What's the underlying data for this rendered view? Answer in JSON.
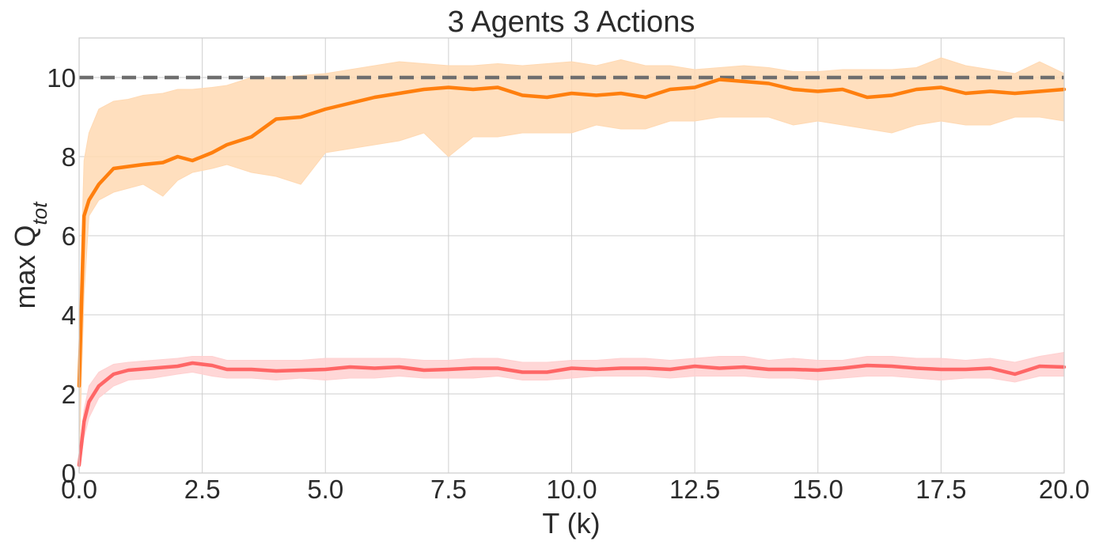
{
  "chart_data": {
    "type": "line",
    "title": "3 Agents 3 Actions",
    "xlabel": "T (k)",
    "ylabel_main": "max Q",
    "ylabel_sub": "tot",
    "xlim": [
      0,
      20
    ],
    "ylim": [
      0,
      11
    ],
    "xticks": [
      "0.0",
      "2.5",
      "5.0",
      "7.5",
      "10.0",
      "12.5",
      "15.0",
      "17.5",
      "20.0"
    ],
    "yticks": [
      "0",
      "2",
      "4",
      "6",
      "8",
      "10"
    ],
    "grid": true,
    "reference_line": {
      "y": 10,
      "color": "#6e6e6e",
      "style": "dashed"
    },
    "series": [
      {
        "color": "#ff7f0e",
        "band_color": "#ffd9b3",
        "x": [
          0,
          0.1,
          0.2,
          0.4,
          0.7,
          1.0,
          1.3,
          1.7,
          2.0,
          2.3,
          2.7,
          3.0,
          3.5,
          4.0,
          4.5,
          5.0,
          5.5,
          6.0,
          6.5,
          7.0,
          7.5,
          8.0,
          8.5,
          9.0,
          9.5,
          10.0,
          10.5,
          11.0,
          11.5,
          12.0,
          12.5,
          13.0,
          13.5,
          14.0,
          14.5,
          15.0,
          15.5,
          16.0,
          16.5,
          17.0,
          17.5,
          18.0,
          18.5,
          19.0,
          19.5,
          20.0
        ],
        "y": [
          2.2,
          6.5,
          6.9,
          7.3,
          7.7,
          7.75,
          7.8,
          7.85,
          8.0,
          7.9,
          8.1,
          8.3,
          8.5,
          8.95,
          9.0,
          9.2,
          9.35,
          9.5,
          9.6,
          9.7,
          9.75,
          9.7,
          9.75,
          9.55,
          9.5,
          9.6,
          9.55,
          9.6,
          9.5,
          9.7,
          9.75,
          9.95,
          9.9,
          9.85,
          9.7,
          9.65,
          9.7,
          9.5,
          9.55,
          9.7,
          9.75,
          9.6,
          9.65,
          9.6,
          9.65,
          9.7
        ],
        "lower": [
          0.3,
          4.5,
          6.5,
          6.9,
          7.1,
          7.2,
          7.3,
          7.0,
          7.4,
          7.6,
          7.7,
          7.8,
          7.6,
          7.5,
          7.3,
          8.1,
          8.2,
          8.3,
          8.4,
          8.6,
          8.0,
          8.5,
          8.5,
          8.6,
          8.6,
          8.6,
          8.8,
          8.7,
          8.7,
          8.9,
          8.9,
          9.0,
          9.0,
          9.0,
          8.8,
          8.9,
          8.8,
          8.7,
          8.6,
          8.8,
          8.9,
          8.8,
          8.8,
          9.0,
          9.0,
          8.9
        ],
        "upper": [
          3.5,
          7.9,
          8.6,
          9.2,
          9.4,
          9.45,
          9.55,
          9.6,
          9.7,
          9.7,
          9.75,
          9.8,
          10.0,
          10.0,
          10.05,
          10.1,
          10.2,
          10.3,
          10.4,
          10.35,
          10.3,
          10.3,
          10.35,
          10.3,
          10.35,
          10.4,
          10.3,
          10.45,
          10.3,
          10.3,
          10.2,
          10.25,
          10.3,
          10.25,
          10.15,
          10.15,
          10.2,
          10.2,
          10.2,
          10.25,
          10.5,
          10.3,
          10.2,
          10.1,
          10.4,
          10.1
        ]
      },
      {
        "color": "#ff6666",
        "band_color": "#ffd0d0",
        "x": [
          0,
          0.1,
          0.2,
          0.4,
          0.7,
          1.0,
          1.5,
          2.0,
          2.3,
          2.7,
          3.0,
          3.5,
          4.0,
          4.5,
          5.0,
          5.5,
          6.0,
          6.5,
          7.0,
          7.5,
          8.0,
          8.5,
          9.0,
          9.5,
          10.0,
          10.5,
          11.0,
          11.5,
          12.0,
          12.5,
          13.0,
          13.5,
          14.0,
          14.5,
          15.0,
          15.5,
          16.0,
          16.5,
          17.0,
          17.5,
          18.0,
          18.5,
          19.0,
          19.5,
          20.0
        ],
        "y": [
          0.2,
          1.3,
          1.8,
          2.2,
          2.5,
          2.6,
          2.65,
          2.7,
          2.78,
          2.72,
          2.62,
          2.62,
          2.58,
          2.6,
          2.62,
          2.68,
          2.65,
          2.68,
          2.6,
          2.62,
          2.65,
          2.65,
          2.55,
          2.55,
          2.65,
          2.62,
          2.65,
          2.65,
          2.62,
          2.7,
          2.65,
          2.68,
          2.62,
          2.62,
          2.6,
          2.65,
          2.72,
          2.7,
          2.65,
          2.62,
          2.62,
          2.65,
          2.5,
          2.7,
          2.68
        ],
        "lower": [
          0.05,
          0.9,
          1.4,
          1.9,
          2.2,
          2.35,
          2.4,
          2.5,
          2.55,
          2.45,
          2.4,
          2.4,
          2.35,
          2.4,
          2.35,
          2.4,
          2.4,
          2.45,
          2.4,
          2.4,
          2.4,
          2.45,
          2.35,
          2.35,
          2.4,
          2.45,
          2.45,
          2.45,
          2.4,
          2.45,
          2.45,
          2.45,
          2.4,
          2.4,
          2.35,
          2.4,
          2.45,
          2.45,
          2.4,
          2.35,
          2.4,
          2.4,
          2.3,
          2.45,
          2.45
        ],
        "upper": [
          0.5,
          1.6,
          2.2,
          2.55,
          2.75,
          2.8,
          2.85,
          2.9,
          2.95,
          2.95,
          2.85,
          2.85,
          2.85,
          2.85,
          2.9,
          2.9,
          2.9,
          2.9,
          2.85,
          2.85,
          2.9,
          2.9,
          2.8,
          2.8,
          2.85,
          2.85,
          2.9,
          2.9,
          2.85,
          2.9,
          2.95,
          2.95,
          2.85,
          2.9,
          2.85,
          2.85,
          2.95,
          2.95,
          2.9,
          2.9,
          2.85,
          2.9,
          2.8,
          2.95,
          3.05
        ]
      }
    ]
  }
}
